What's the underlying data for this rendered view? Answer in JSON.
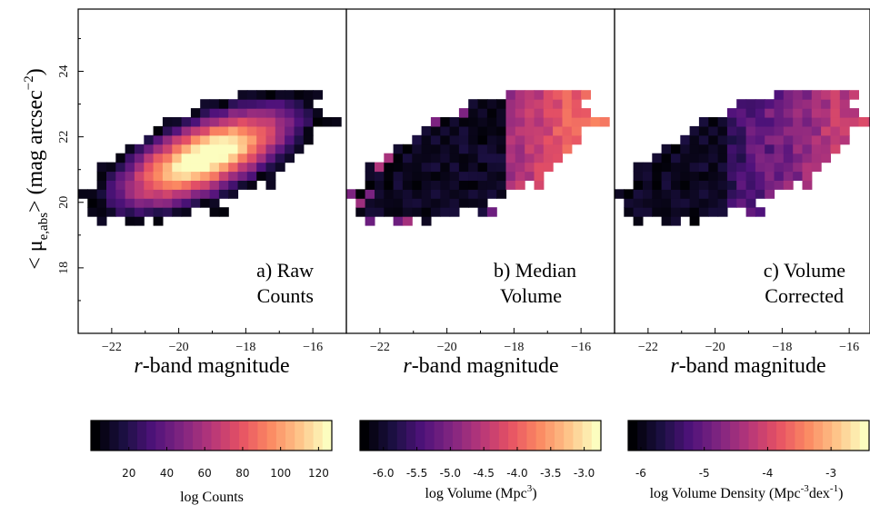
{
  "chart_data": [
    {
      "type": "heatmap",
      "panel_label": "a) Raw",
      "panel_label_line2": "Counts",
      "xlabel_italic": "r",
      "xlabel_rest": "-band magnitude",
      "ylabel": "< μ",
      "ylabel_sub": "e,abs",
      "ylabel_after": "> (mag  arcsec",
      "ylabel_sup": "−2",
      "ylabel_close": ")",
      "xlim": [
        -23.0,
        -15.0
      ],
      "ylim": [
        16.0,
        25.9
      ],
      "xticks": [
        -22,
        -20,
        -18,
        -16
      ],
      "xticklabels": [
        "−22",
        "−20",
        "−18",
        "−16"
      ],
      "yticks": [
        18,
        20,
        22,
        24
      ],
      "yticklabels": [
        "18",
        "20",
        "22",
        "24"
      ],
      "colorbar": {
        "label": "log Counts",
        "range": [
          0,
          127
        ],
        "ticks": [
          20,
          40,
          60,
          80,
          100,
          120
        ],
        "ticklabels": [
          "20",
          "40",
          "60",
          "80",
          "100",
          "120"
        ]
      }
    },
    {
      "type": "heatmap",
      "panel_label": "b) Median",
      "panel_label_line2": "Volume",
      "xlabel_italic": "r",
      "xlabel_rest": "-band magnitude",
      "xlim": [
        -23.0,
        -15.0
      ],
      "ylim": [
        16.0,
        25.9
      ],
      "xticks": [
        -22,
        -20,
        -18,
        -16
      ],
      "xticklabels": [
        "−22",
        "−20",
        "−18",
        "−16"
      ],
      "colorbar": {
        "label": "log Volume (Mpc",
        "label_sup": "3",
        "label_close": ")",
        "range": [
          -6.35,
          -2.75
        ],
        "ticks": [
          -6.0,
          -5.5,
          -5.0,
          -4.5,
          -4.0,
          -3.5,
          -3.0
        ],
        "ticklabels": [
          "-6.0",
          "-5.5",
          "-5.0",
          "-4.5",
          "-4.0",
          "-3.5",
          "-3.0"
        ]
      }
    },
    {
      "type": "heatmap",
      "panel_label": "c) Volume",
      "panel_label_line2": "Corrected",
      "xlabel_italic": "r",
      "xlabel_rest": "-band magnitude",
      "xlim": [
        -23.0,
        -15.0
      ],
      "ylim": [
        16.0,
        25.9
      ],
      "xticks": [
        -22,
        -20,
        -18,
        -16
      ],
      "xticklabels": [
        "−22",
        "−20",
        "−18",
        "−16"
      ],
      "colorbar": {
        "label": "log Volume Density (Mpc",
        "label_sup": "-3",
        "label_mid": "dex",
        "label_sup2": "-1",
        "label_close": ")",
        "range": [
          -6.2,
          -2.4
        ],
        "ticks": [
          -6,
          -5,
          -4,
          -3
        ],
        "ticklabels": [
          "-6",
          "-5",
          "-4",
          "-3"
        ]
      }
    }
  ],
  "colormap": [
    "#000004",
    "#1c1044",
    "#4f127b",
    "#812581",
    "#b5367a",
    "#e55064",
    "#fb8761",
    "#fec287",
    "#fcfdbf"
  ]
}
